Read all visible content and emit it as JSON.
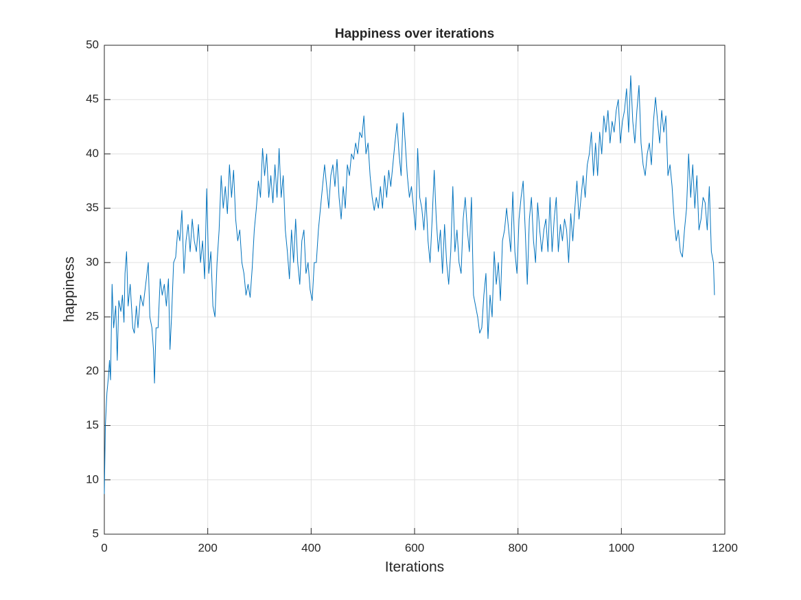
{
  "chart_data": {
    "type": "line",
    "title": "Happiness over iterations",
    "x_label": "Iterations",
    "y_label": "happiness",
    "xlim": [
      0,
      1200
    ],
    "ylim": [
      5,
      50
    ],
    "xticks": [
      0,
      200,
      400,
      600,
      800,
      1000,
      1200
    ],
    "yticks": [
      5,
      10,
      15,
      20,
      25,
      30,
      35,
      40,
      45,
      50
    ],
    "grid": true,
    "series": [
      {
        "color": "#0072BD",
        "x": [
          0,
          2,
          5,
          8,
          10,
          12,
          15,
          18,
          22,
          25,
          28,
          32,
          35,
          38,
          40,
          43,
          46,
          50,
          55,
          58,
          62,
          65,
          70,
          75,
          80,
          85,
          88,
          92,
          95,
          97,
          100,
          104,
          108,
          112,
          116,
          120,
          124,
          127,
          130,
          134,
          138,
          142,
          146,
          150,
          154,
          158,
          162,
          166,
          170,
          174,
          178,
          182,
          186,
          190,
          194,
          198,
          202,
          206,
          210,
          214,
          218,
          222,
          226,
          230,
          234,
          238,
          242,
          246,
          250,
          254,
          258,
          262,
          266,
          270,
          274,
          278,
          282,
          286,
          290,
          294,
          298,
          302,
          306,
          310,
          314,
          318,
          322,
          326,
          330,
          334,
          338,
          342,
          346,
          350,
          354,
          358,
          362,
          366,
          370,
          374,
          378,
          382,
          386,
          390,
          394,
          398,
          402,
          406,
          410,
          414,
          418,
          422,
          426,
          430,
          434,
          438,
          442,
          446,
          450,
          454,
          458,
          462,
          466,
          470,
          474,
          478,
          482,
          486,
          490,
          494,
          498,
          502,
          506,
          510,
          514,
          518,
          522,
          526,
          530,
          534,
          538,
          542,
          546,
          550,
          554,
          558,
          562,
          566,
          570,
          574,
          578,
          582,
          586,
          590,
          594,
          598,
          602,
          606,
          610,
          614,
          618,
          622,
          626,
          630,
          634,
          638,
          642,
          646,
          650,
          654,
          658,
          662,
          666,
          670,
          674,
          678,
          682,
          686,
          690,
          694,
          698,
          702,
          706,
          710,
          714,
          718,
          722,
          726,
          730,
          734,
          738,
          742,
          746,
          750,
          754,
          758,
          762,
          766,
          770,
          774,
          778,
          782,
          786,
          790,
          794,
          798,
          802,
          806,
          810,
          814,
          818,
          822,
          826,
          830,
          834,
          838,
          842,
          846,
          850,
          854,
          858,
          862,
          866,
          870,
          874,
          878,
          882,
          886,
          890,
          894,
          898,
          902,
          906,
          910,
          914,
          918,
          922,
          926,
          930,
          934,
          938,
          942,
          946,
          950,
          954,
          958,
          962,
          966,
          970,
          974,
          978,
          982,
          986,
          990,
          994,
          998,
          1002,
          1006,
          1010,
          1014,
          1018,
          1022,
          1026,
          1030,
          1034,
          1038,
          1042,
          1046,
          1050,
          1054,
          1058,
          1062,
          1066,
          1070,
          1074,
          1078,
          1082,
          1086,
          1090,
          1094,
          1098,
          1102,
          1106,
          1110,
          1114,
          1118,
          1122,
          1126,
          1130,
          1134,
          1138,
          1142,
          1146,
          1150,
          1154,
          1158,
          1162,
          1166,
          1170,
          1174,
          1178,
          1180
        ],
        "values": [
          8.7,
          15,
          18,
          19.5,
          21,
          19.2,
          28,
          24,
          26,
          21,
          26.5,
          25.5,
          27,
          24.5,
          29,
          31,
          26,
          28,
          24,
          23.5,
          26,
          24,
          27,
          26,
          28,
          30,
          25,
          24,
          22,
          18.9,
          24,
          24,
          28.5,
          27,
          28,
          26,
          28.5,
          22,
          25,
          30,
          30.5,
          33,
          32,
          34.8,
          29,
          32,
          33.5,
          31,
          34,
          32,
          31,
          33.5,
          30,
          32,
          28.5,
          36.8,
          29,
          31,
          26,
          25,
          30,
          33,
          38,
          35,
          37,
          34.5,
          39,
          36,
          38.5,
          34,
          32,
          33,
          30,
          29,
          27,
          28,
          26.8,
          29.5,
          33,
          35,
          37.5,
          36,
          40.5,
          38,
          40,
          36,
          38,
          35.5,
          39,
          36,
          40.5,
          36,
          38,
          33,
          31,
          28.5,
          33,
          30,
          34,
          30,
          28,
          32,
          33,
          29,
          30,
          27.5,
          26.5,
          30,
          30,
          33,
          35,
          37,
          39,
          37,
          35,
          38,
          39,
          37,
          39.5,
          36,
          34,
          37,
          35,
          39,
          38,
          40,
          39.5,
          41,
          40,
          42,
          41.5,
          43.5,
          40,
          41,
          38,
          36,
          34.8,
          36,
          35,
          37,
          35,
          38,
          36,
          38.5,
          37,
          39,
          41,
          42.8,
          40,
          38,
          43.8,
          41,
          38,
          36,
          37,
          35,
          33,
          40.5,
          36,
          35,
          33,
          36,
          32,
          30,
          34,
          38.5,
          34,
          31,
          33,
          29,
          33.5,
          30,
          28,
          31,
          37,
          31,
          33,
          30,
          29,
          34,
          36,
          33,
          31,
          36,
          27,
          26,
          25,
          23.5,
          24,
          27,
          29,
          23,
          27,
          25,
          31,
          28,
          30,
          26.5,
          32,
          33,
          35,
          33,
          31,
          36.5,
          31,
          29,
          34,
          36,
          37.5,
          33,
          28,
          34,
          36,
          32,
          30,
          35.5,
          33,
          31,
          33,
          34,
          31,
          36,
          31,
          34,
          36,
          31,
          33.5,
          32,
          34,
          33,
          30,
          34.5,
          32,
          35,
          37.5,
          34,
          36,
          38,
          36,
          39,
          40,
          42,
          38,
          41,
          38,
          42,
          40,
          43.5,
          42,
          44,
          41,
          43,
          42,
          44,
          45,
          41,
          43,
          44,
          46,
          42,
          47.2,
          43,
          41,
          44,
          46.3,
          41,
          39,
          38,
          40,
          41,
          39,
          43,
          45.2,
          43,
          41,
          44,
          42,
          43.5,
          38,
          39,
          37,
          34,
          32,
          33,
          31,
          30.5,
          33,
          35,
          40,
          36,
          39,
          35,
          38,
          33,
          34,
          36,
          35.5,
          33,
          37,
          31,
          30,
          27
        ]
      }
    ]
  }
}
